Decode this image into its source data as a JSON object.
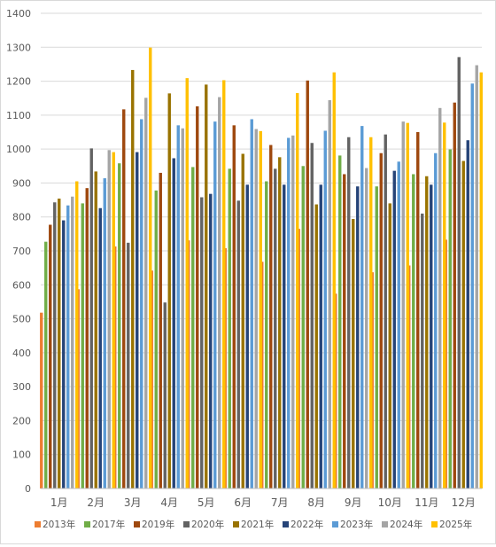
{
  "chart_data": {
    "type": "bar",
    "title": "",
    "xlabel": "",
    "ylabel": "",
    "ylim": [
      0,
      1400
    ],
    "yticks": [
      0,
      100,
      200,
      300,
      400,
      500,
      600,
      700,
      800,
      900,
      1000,
      1100,
      1200,
      1300,
      1400
    ],
    "grid": true,
    "legend_position": "bottom",
    "categories": [
      "1月",
      "2月",
      "3月",
      "4月",
      "5月",
      "6月",
      "7月",
      "8月",
      "9月",
      "10月",
      "11月",
      "12月"
    ],
    "series": [
      {
        "name": "2013年",
        "color": "#ED7D31",
        "values": [
          518,
          587,
          713,
          642,
          731,
          708,
          668,
          765,
          574,
          637,
          657,
          733
        ]
      },
      {
        "name": "2017年",
        "color": "#70AD47",
        "values": [
          727,
          840,
          958,
          878,
          947,
          942,
          905,
          950,
          981,
          890,
          926,
          999
        ]
      },
      {
        "name": "2019年",
        "color": "#9E480E",
        "values": [
          777,
          885,
          1117,
          930,
          1126,
          1070,
          1012,
          1202,
          926,
          988,
          1050,
          1137
        ]
      },
      {
        "name": "2020年",
        "color": "#636363",
        "values": [
          843,
          1002,
          724,
          548,
          858,
          848,
          942,
          1018,
          1035,
          1043,
          810,
          1271
        ]
      },
      {
        "name": "2021年",
        "color": "#997300",
        "values": [
          854,
          934,
          1233,
          1164,
          1190,
          986,
          976,
          837,
          794,
          840,
          920,
          965
        ]
      },
      {
        "name": "2022年",
        "color": "#264478",
        "values": [
          790,
          826,
          991,
          973,
          868,
          895,
          895,
          895,
          890,
          936,
          895,
          1026
        ]
      },
      {
        "name": "2023年",
        "color": "#5B9BD5",
        "values": [
          834,
          914,
          1088,
          1070,
          1081,
          1088,
          1033,
          1054,
          1068,
          963,
          988,
          1193
        ]
      },
      {
        "name": "2024年",
        "color": "#A5A5A5",
        "values": [
          860,
          997,
          1151,
          1061,
          1153,
          1059,
          1040,
          1144,
          944,
          1081,
          1121,
          1247
        ]
      },
      {
        "name": "2025年",
        "color": "#FFC000",
        "values": [
          905,
          991,
          1299,
          1209,
          1203,
          1053,
          1165,
          1226,
          1035,
          1077,
          1078,
          1226
        ]
      }
    ]
  }
}
